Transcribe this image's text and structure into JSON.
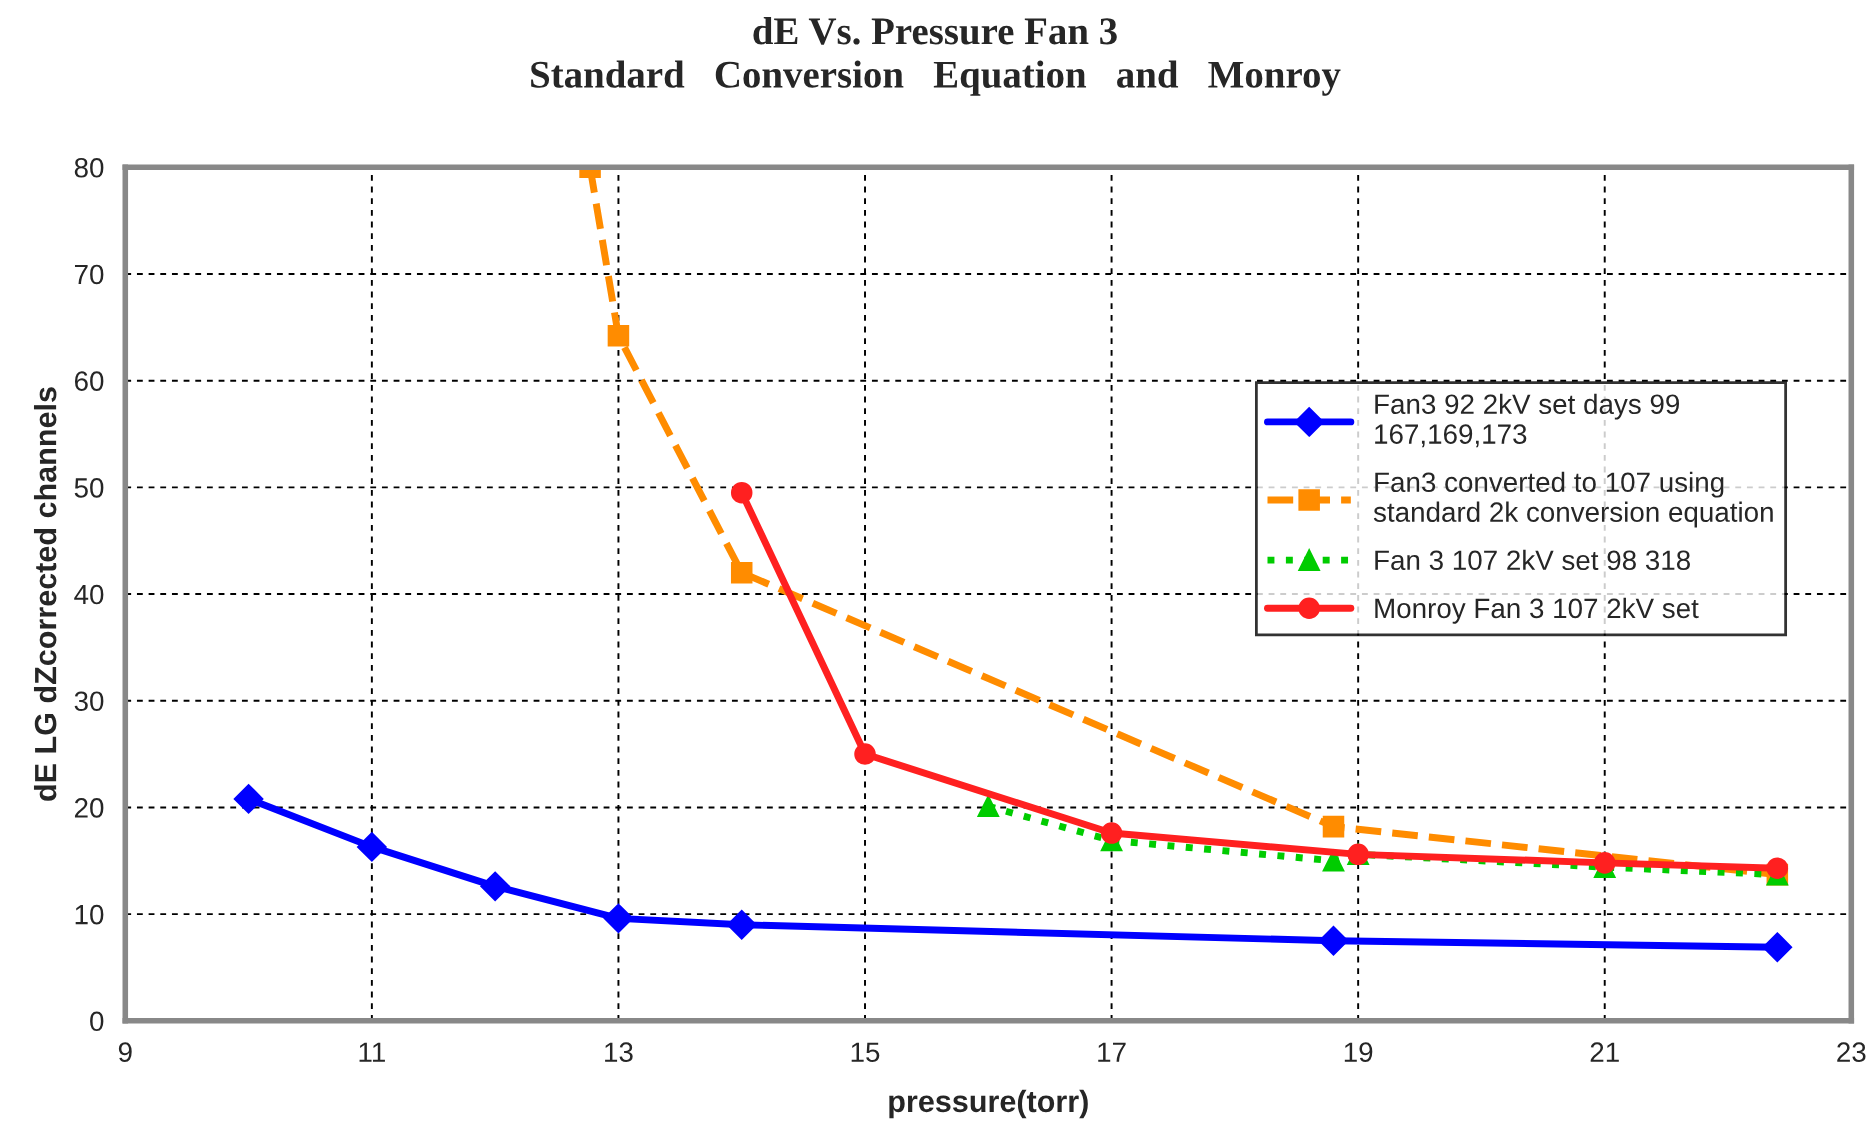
{
  "chart_data": {
    "type": "line",
    "title": "dE Vs. Pressure Fan 3\nStandard   Conversion   Equation   and   Monroy",
    "xlabel": "pressure(torr)",
    "ylabel": "dE LG dZcorrected channels",
    "xlim": [
      9,
      23
    ],
    "xticks": [
      9,
      11,
      13,
      15,
      17,
      19,
      21,
      23
    ],
    "ylim": [
      0,
      80
    ],
    "yticks": [
      0,
      10,
      20,
      30,
      40,
      50,
      60,
      70,
      80
    ],
    "grid": true,
    "legend": "right",
    "series": [
      {
        "name": "Fan3 92 2kV set days 99\n167,169,173",
        "color": "#0000ff",
        "marker": "diamond",
        "line_style": "solid",
        "x": [
          10,
          11,
          12,
          13,
          14,
          18.8,
          22.4
        ],
        "values": [
          20.8,
          16.3,
          12.6,
          9.6,
          9.0,
          7.5,
          6.9
        ]
      },
      {
        "name": "Fan3 converted to 107 using\nstandard 2k conversion equation",
        "color": "#ff8c00",
        "marker": "square",
        "line_style": "dashed",
        "x": [
          12.77,
          13,
          14,
          18.8,
          22.4
        ],
        "values": [
          80,
          64.2,
          42,
          18.2,
          13.7
        ]
      },
      {
        "name": "Fan 3 107 2kV set 98 318",
        "color": "#00cc00",
        "marker": "triangle",
        "line_style": "dotted",
        "x": [
          16,
          17,
          18.8,
          19,
          21,
          22.4
        ],
        "values": [
          20.1,
          16.9,
          15.0,
          15.6,
          14.4,
          13.7
        ]
      },
      {
        "name": "Monroy Fan 3 107 2kV set",
        "color": "#ff2020",
        "marker": "circle",
        "line_style": "solid",
        "x": [
          14,
          15,
          17,
          19,
          21,
          22.4
        ],
        "values": [
          49.5,
          25,
          17.6,
          15.6,
          14.8,
          14.3
        ]
      }
    ]
  }
}
